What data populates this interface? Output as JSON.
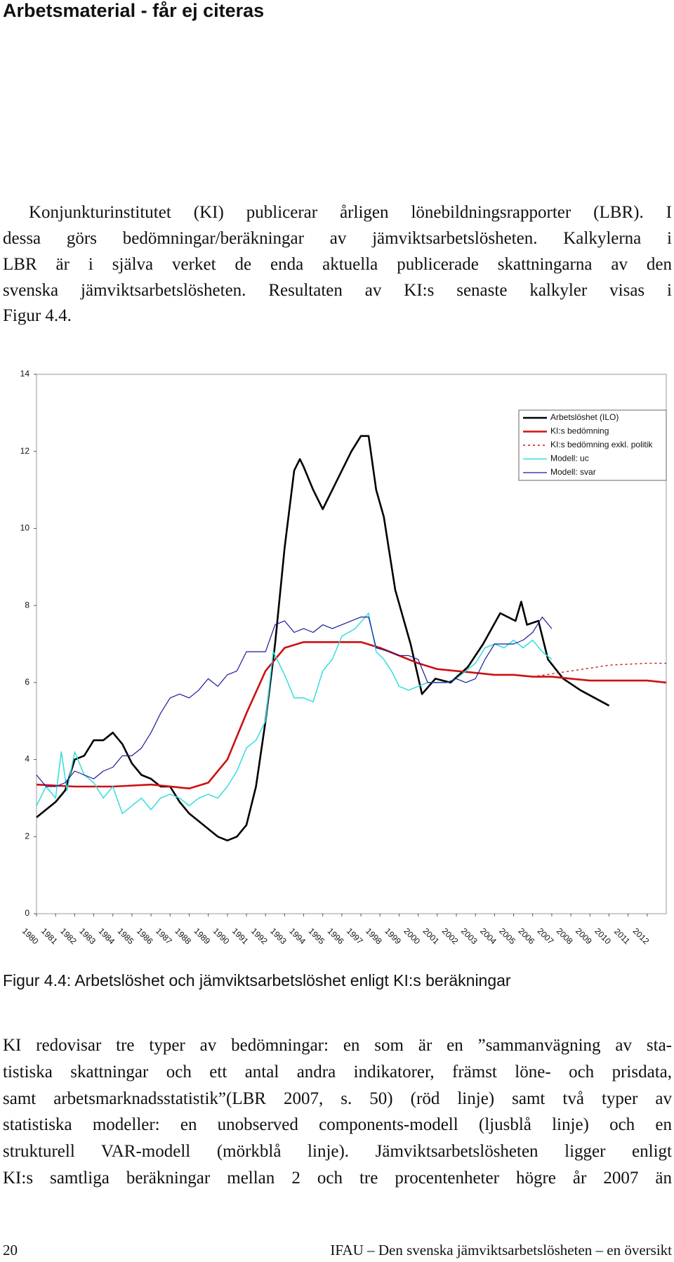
{
  "header": {
    "title": "Arbetsmaterial - får ej citeras"
  },
  "paragraph_1": [
    "Konjunkturinstitutet (KI) publicerar årligen lönebildningsrapporter (LBR). I",
    "dessa görs bedömningar/beräkningar av jämviktsarbetslösheten. Kalkylerna i",
    "LBR är i själva verket de enda aktuella publicerade skattningarna av den",
    "svenska jämviktsarbetslösheten. Resultaten av KI:s senaste kalkyler visas i",
    "Figur 4.4."
  ],
  "chart_data": {
    "type": "line",
    "xlim": [
      1980,
      2013
    ],
    "ylim": [
      0,
      14
    ],
    "yticks": [
      0,
      2,
      4,
      6,
      8,
      10,
      12,
      14
    ],
    "xticks": [
      1980,
      1981,
      1982,
      1983,
      1984,
      1985,
      1986,
      1987,
      1988,
      1989,
      1990,
      1991,
      1992,
      1993,
      1994,
      1995,
      1996,
      1997,
      1998,
      1999,
      2000,
      2001,
      2002,
      2003,
      2004,
      2005,
      2006,
      2007,
      2008,
      2009,
      2010,
      2011,
      2012
    ],
    "legend": "upper right",
    "series": [
      {
        "name": "Arbetslöshet (ILO)",
        "color": "#000000",
        "style": "solid",
        "x": [
          1980,
          1980.5,
          1981,
          1981.5,
          1982,
          1982.5,
          1983,
          1983.5,
          1984,
          1984.5,
          1985,
          1985.5,
          1986,
          1986.5,
          1987,
          1987.5,
          1988,
          1988.5,
          1989,
          1989.5,
          1990,
          1990.5,
          1991,
          1991.5,
          1992,
          1992.5,
          1993,
          1993.5,
          1993.8,
          1994,
          1994.5,
          1995,
          1995.5,
          1996,
          1996.5,
          1997,
          1997.4,
          1997.8,
          1998.2,
          1998.8,
          1999.6,
          2000.2,
          2000.9,
          2001.7,
          2002.6,
          2003.4,
          2004.3,
          2005.1,
          2005.4,
          2005.7,
          2006.3,
          2006.8,
          2007.6,
          2008.5,
          2010
        ],
        "values": [
          2.5,
          2.7,
          2.9,
          3.2,
          4.0,
          4.1,
          4.5,
          4.5,
          4.7,
          4.4,
          3.9,
          3.6,
          3.5,
          3.3,
          3.3,
          2.9,
          2.6,
          2.4,
          2.2,
          2.0,
          1.9,
          2.0,
          2.3,
          3.3,
          5.0,
          7.0,
          9.5,
          11.5,
          11.8,
          11.6,
          11.0,
          10.5,
          11.0,
          11.5,
          12.0,
          12.4,
          12.4,
          11.0,
          10.3,
          8.4,
          7.0,
          5.7,
          6.1,
          6.0,
          6.4,
          7.0,
          7.8,
          7.6,
          8.1,
          7.5,
          7.6,
          6.6,
          6.1,
          5.8,
          5.4
        ]
      },
      {
        "name": "KI:s bedömning",
        "color": "#cc1111",
        "style": "solid",
        "x": [
          1980,
          1982,
          1984,
          1986,
          1988,
          1989,
          1990,
          1991,
          1992,
          1993,
          1994,
          1996,
          1997,
          1998,
          1999,
          2000,
          2001,
          2002,
          2003,
          2004,
          2005,
          2006,
          2007,
          2008,
          2009,
          2010,
          2012,
          2013
        ],
        "values": [
          3.35,
          3.3,
          3.3,
          3.35,
          3.25,
          3.4,
          4.0,
          5.2,
          6.3,
          6.9,
          7.05,
          7.05,
          7.05,
          6.9,
          6.7,
          6.5,
          6.35,
          6.3,
          6.25,
          6.2,
          6.2,
          6.15,
          6.15,
          6.1,
          6.05,
          6.05,
          6.05,
          6.0
        ]
      },
      {
        "name": "KI:s bedömning exkl. politik",
        "color": "#cc1111",
        "style": "dashed",
        "x": [
          2006,
          2008,
          2010,
          2012,
          2013
        ],
        "values": [
          6.15,
          6.3,
          6.45,
          6.5,
          6.5
        ]
      },
      {
        "name": "Modell:  uc",
        "color": "#33dddd",
        "style": "solid",
        "x": [
          1980,
          1980.5,
          1981,
          1981.3,
          1981.6,
          1982,
          1982.5,
          1983,
          1983.5,
          1984,
          1984.5,
          1985,
          1985.5,
          1986,
          1986.5,
          1987,
          1987.5,
          1988,
          1988.5,
          1989,
          1989.5,
          1990,
          1990.5,
          1991,
          1991.5,
          1992,
          1992.4,
          1993,
          1993.5,
          1994,
          1994.5,
          1995,
          1995.5,
          1996,
          1996.7,
          1997.4,
          1997.8,
          1998.2,
          1998.6,
          1999,
          1999.5,
          2000,
          2000.5,
          2001,
          2001.5,
          2002,
          2002.5,
          2003,
          2003.5,
          2004,
          2004.5,
          2005,
          2005.5,
          2006,
          2006.5,
          2007
        ],
        "values": [
          2.8,
          3.3,
          3.0,
          4.2,
          3.2,
          4.2,
          3.6,
          3.4,
          3.0,
          3.3,
          2.6,
          2.8,
          3.0,
          2.7,
          3.0,
          3.1,
          3.0,
          2.8,
          3.0,
          3.1,
          3.0,
          3.3,
          3.7,
          4.3,
          4.5,
          5.0,
          6.8,
          6.2,
          5.6,
          5.6,
          5.5,
          6.3,
          6.6,
          7.2,
          7.4,
          7.8,
          6.8,
          6.6,
          6.3,
          5.9,
          5.8,
          5.9,
          6.0,
          6.0,
          6.0,
          6.1,
          6.3,
          6.5,
          6.9,
          7.0,
          6.9,
          7.1,
          6.9,
          7.1,
          6.8,
          6.6
        ]
      },
      {
        "name": "Modell:  svar",
        "color": "#1a1a99",
        "style": "solid",
        "x": [
          1980,
          1980.5,
          1981,
          1981.5,
          1982,
          1982.5,
          1983,
          1983.5,
          1984,
          1984.5,
          1985,
          1985.5,
          1986,
          1986.5,
          1987,
          1987.5,
          1988,
          1988.5,
          1989,
          1989.5,
          1990,
          1990.5,
          1991,
          1991.5,
          1992,
          1992.5,
          1993,
          1993.5,
          1994,
          1994.5,
          1995,
          1995.5,
          1996,
          1996.5,
          1997,
          1997.4,
          1997.8,
          1998.5,
          1999,
          1999.5,
          2000,
          2000.5,
          2001,
          2001.5,
          2002,
          2002.5,
          2003,
          2003.5,
          2004,
          2004.5,
          2005,
          2005.5,
          2006,
          2006.5,
          2007
        ],
        "values": [
          3.6,
          3.3,
          3.3,
          3.4,
          3.7,
          3.6,
          3.5,
          3.7,
          3.8,
          4.1,
          4.1,
          4.3,
          4.7,
          5.2,
          5.6,
          5.7,
          5.6,
          5.8,
          6.1,
          5.9,
          6.2,
          6.3,
          6.8,
          6.8,
          6.8,
          7.5,
          7.6,
          7.3,
          7.4,
          7.3,
          7.5,
          7.4,
          7.5,
          7.6,
          7.7,
          7.7,
          6.9,
          6.8,
          6.7,
          6.7,
          6.6,
          6.0,
          6.0,
          6.0,
          6.1,
          6.0,
          6.1,
          6.6,
          7.0,
          7.0,
          7.0,
          7.1,
          7.3,
          7.7,
          7.4
        ]
      }
    ]
  },
  "figure_caption": "Figur 4.4: Arbetslöshet och jämviktsarbetslöshet enligt KI:s beräkningar",
  "paragraph_2": [
    "KI redovisar tre typer av bedömningar: en som är en ”sammanvägning av sta-",
    "tistiska skattningar och ett antal andra indikatorer, främst löne- och prisdata,",
    "samt arbetsmarknadsstatistik”(LBR 2007, s. 50) (röd linje) samt två typer av",
    "statistiska modeller: en unobserved components-modell (ljusblå linje) och en",
    "strukturell VAR-modell (mörkblå linje). Jämviktsarbetslösheten ligger enligt",
    "KI:s samtliga beräkningar mellan 2 och tre procentenheter högre år 2007 än"
  ],
  "footer": {
    "page": "20",
    "text": "IFAU – Den svenska jämviktsarbetslösheten – en översikt"
  }
}
